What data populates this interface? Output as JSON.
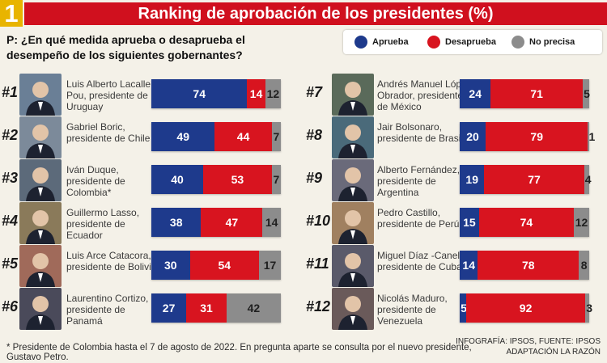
{
  "header": {
    "number": "1",
    "title": "Ranking de aprobación de los presidentes (%)"
  },
  "question": "P: ¿En qué medida aprueba o desaprueba el desempeño de los siguientes gobernantes?",
  "legend": [
    {
      "label": "Aprueba",
      "color": "#1e3a8c"
    },
    {
      "label": "Desaprueba",
      "color": "#d8141f"
    },
    {
      "label": "No precisa",
      "color": "#8c8c8c"
    }
  ],
  "chart_data": {
    "type": "bar",
    "stacked": true,
    "orientation": "horizontal",
    "title": "Ranking de aprobación de los presidentes (%)",
    "series_names": [
      "Aprueba",
      "Desaprueba",
      "No precisa"
    ],
    "colors": [
      "#1e3a8c",
      "#d8141f",
      "#8c8c8c"
    ],
    "rows": [
      {
        "rank": "#1",
        "name": "Luis Alberto Lacalle Pou, presidente de Uruguay",
        "values": [
          74,
          14,
          12
        ]
      },
      {
        "rank": "#2",
        "name": "Gabriel Boric, presidente de Chile",
        "values": [
          49,
          44,
          7
        ]
      },
      {
        "rank": "#3",
        "name": "Iván Duque, presidente de Colombia*",
        "values": [
          40,
          53,
          7
        ]
      },
      {
        "rank": "#4",
        "name": "Guillermo Lasso, presidente de Ecuador",
        "values": [
          38,
          47,
          14
        ]
      },
      {
        "rank": "#5",
        "name": "Luis Arce Catacora, presidente de Bolivia",
        "values": [
          30,
          54,
          17
        ]
      },
      {
        "rank": "#6",
        "name": "Laurentino Cortizo, presidente de Panamá",
        "values": [
          27,
          31,
          42
        ]
      },
      {
        "rank": "#7",
        "name": "Andrés Manuel López Obrador, presidente de México",
        "values": [
          24,
          71,
          5
        ]
      },
      {
        "rank": "#8",
        "name": "Jair Bolsonaro, presidente de Brasil",
        "values": [
          20,
          79,
          1
        ]
      },
      {
        "rank": "#9",
        "name": "Alberto Fernández, presidente de Argentina",
        "values": [
          19,
          77,
          4
        ]
      },
      {
        "rank": "#10",
        "name": "Pedro Castillo, presidente de Perú",
        "values": [
          15,
          74,
          12
        ]
      },
      {
        "rank": "#11",
        "name": "Miguel Díaz -Canel, presidente de Cuba",
        "values": [
          14,
          78,
          8
        ]
      },
      {
        "rank": "#12",
        "name": "Nicolás Maduro, presidente de Venezuela",
        "values": [
          5,
          92,
          3
        ]
      }
    ]
  },
  "footnote": "*  Presidente de Colombia hasta el 7 de agosto de 2022. En pregunta aparte se consulta por el nuevo presidente, Gustavo Petro.",
  "credit_line1": "INFOGRAFÍA: IPSOS, FUENTE: IPSOS",
  "credit_line2": "ADAPTACIÓN LA RAZÓN"
}
